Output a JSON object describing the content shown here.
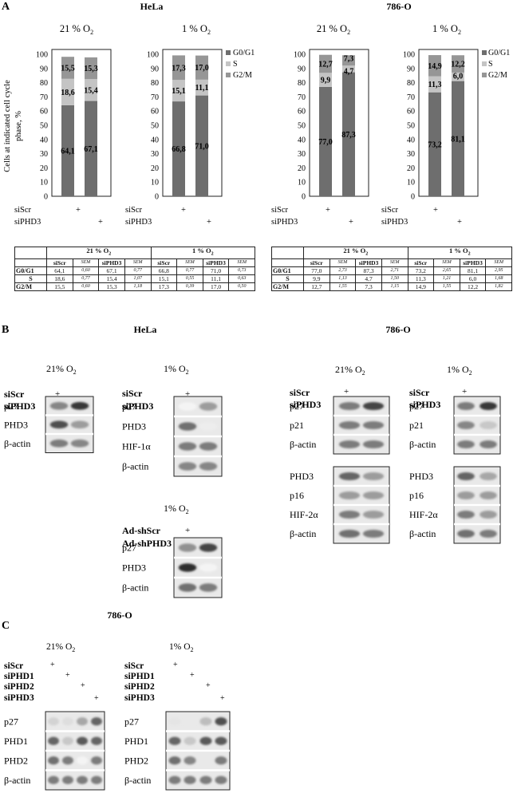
{
  "panels": {
    "A": "A",
    "B": "B",
    "C": "C"
  },
  "panel_a": {
    "cell_lines": [
      "HeLa",
      "786-O"
    ],
    "y_axis_label_line1": "Cells at indicated cell cycle",
    "y_axis_label_line2": "phase, %",
    "legend": [
      "G0/G1",
      "S",
      "G2/M"
    ],
    "row_labels": [
      "siScr",
      "siPHD3"
    ],
    "plus": "+"
  },
  "chart_data": [
    {
      "type": "bar",
      "stacked": true,
      "title": "HeLa 21 % O2",
      "categories": [
        "siScr",
        "siPHD3"
      ],
      "ylim": [
        0,
        100
      ],
      "yticks": [
        0,
        10,
        20,
        30,
        40,
        50,
        60,
        70,
        80,
        90,
        100
      ],
      "series": [
        {
          "name": "G0/G1",
          "values": [
            64.1,
            67.1
          ],
          "labels": [
            "64,1",
            "67,1"
          ],
          "color": "#6e6e6e"
        },
        {
          "name": "S",
          "values": [
            18.6,
            15.4
          ],
          "labels": [
            "18,6",
            "15,4"
          ],
          "color": "#c4c4c4"
        },
        {
          "name": "G2/M",
          "values": [
            15.5,
            15.3
          ],
          "labels": [
            "15,5",
            "15,3"
          ],
          "color": "#969696"
        }
      ]
    },
    {
      "type": "bar",
      "stacked": true,
      "title": "HeLa 1 % O2",
      "categories": [
        "siScr",
        "siPHD3"
      ],
      "ylim": [
        0,
        100
      ],
      "yticks": [
        0,
        10,
        20,
        30,
        40,
        50,
        60,
        70,
        80,
        90,
        100
      ],
      "series": [
        {
          "name": "G0/G1",
          "values": [
            66.8,
            71.0
          ],
          "labels": [
            "66,8",
            "71,0"
          ],
          "color": "#6e6e6e"
        },
        {
          "name": "S",
          "values": [
            15.1,
            11.1
          ],
          "labels": [
            "15,1",
            "11,1"
          ],
          "color": "#c4c4c4"
        },
        {
          "name": "G2/M",
          "values": [
            17.3,
            17.0
          ],
          "labels": [
            "17,3",
            "17,0"
          ],
          "color": "#969696"
        }
      ]
    },
    {
      "type": "bar",
      "stacked": true,
      "title": "786-O 21 % O2",
      "categories": [
        "siScr",
        "siPHD3"
      ],
      "ylim": [
        0,
        100
      ],
      "yticks": [
        0,
        10,
        20,
        30,
        40,
        50,
        60,
        70,
        80,
        90,
        100
      ],
      "series": [
        {
          "name": "G0/G1",
          "values": [
            77.0,
            87.3
          ],
          "labels": [
            "77,0",
            "87,3"
          ],
          "color": "#6e6e6e"
        },
        {
          "name": "S",
          "values": [
            9.9,
            4.7
          ],
          "labels": [
            "9,9",
            "4,7"
          ],
          "color": "#c4c4c4"
        },
        {
          "name": "G2/M",
          "values": [
            12.7,
            7.3
          ],
          "labels": [
            "12,7",
            "7,3"
          ],
          "color": "#969696"
        }
      ]
    },
    {
      "type": "bar",
      "stacked": true,
      "title": "786-O 1 % O2",
      "categories": [
        "siScr",
        "siPHD3"
      ],
      "ylim": [
        0,
        100
      ],
      "yticks": [
        0,
        10,
        20,
        30,
        40,
        50,
        60,
        70,
        80,
        90,
        100
      ],
      "series": [
        {
          "name": "G0/G1",
          "values": [
            73.2,
            81.1
          ],
          "labels": [
            "73,2",
            "81,1"
          ],
          "color": "#6e6e6e"
        },
        {
          "name": "S",
          "values": [
            11.3,
            6.0
          ],
          "labels": [
            "11,3",
            "6,0"
          ],
          "color": "#c4c4c4"
        },
        {
          "name": "G2/M",
          "values": [
            14.9,
            12.2
          ],
          "labels": [
            "14,9",
            "12,2"
          ],
          "color": "#969696"
        }
      ]
    }
  ],
  "tables": [
    {
      "conditions": [
        "21 % O",
        "1 % O"
      ],
      "cols": [
        "siScr",
        "SEM",
        "siPHD3",
        "SEM"
      ],
      "rows": [
        {
          "label": "G0/G1",
          "cells": [
            "64,1",
            "0,60",
            "67,1",
            "0,77",
            "66,8",
            "0,77",
            "71,0",
            "0,73"
          ]
        },
        {
          "label": "S",
          "cells": [
            "18,6",
            "0,77",
            "15,4",
            "1,07",
            "15,1",
            "0,55",
            "11,1",
            "0,63"
          ]
        },
        {
          "label": "G2/M",
          "cells": [
            "15,5",
            "0,60",
            "15,3",
            "1,18",
            "17,3",
            "0,39",
            "17,0",
            "0,50"
          ]
        }
      ]
    },
    {
      "conditions": [
        "21 % O",
        "1 % O"
      ],
      "cols": [
        "siScr",
        "SEM",
        "siPHD3",
        "SEM"
      ],
      "rows": [
        {
          "label": "G0/G1",
          "cells": [
            "77,0",
            "2,73",
            "87,3",
            "2,71",
            "73,2",
            "2,65",
            "81,1",
            "2,95"
          ]
        },
        {
          "label": "S",
          "cells": [
            "9,9",
            "1,13",
            "4,7",
            "1,50",
            "11,3",
            "1,21",
            "6,0",
            "1,68"
          ]
        },
        {
          "label": "G2/M",
          "cells": [
            "12,7",
            "1,55",
            "7,3",
            "1,15",
            "14,9",
            "1,55",
            "12,2",
            "1,82"
          ]
        }
      ]
    }
  ],
  "panel_b": {
    "hela_title": "HeLa",
    "c786_title": "786-O",
    "cond_21": "21% O",
    "cond_1": "1% O",
    "sub2": "2",
    "siScr": "siScr",
    "siPHD3": "siPHD3",
    "ad_shScr": "Ad-shScr",
    "ad_shPHD3": "Ad-shPHD3",
    "blots": {
      "hela21": [
        "p27",
        "PHD3",
        "β-actin"
      ],
      "hela1": [
        "p27",
        "PHD3",
        "HIF-1α",
        "β-actin"
      ],
      "hela1_ad": [
        "p27",
        "PHD3",
        "β-actin"
      ],
      "c786_top": [
        "p27",
        "p21",
        "β-actin"
      ],
      "c786_bottom": [
        "PHD3",
        "p16",
        "HIF-2α",
        "β-actin"
      ]
    }
  },
  "panel_c": {
    "title": "786-O",
    "cond_21": "21% O",
    "cond_1": "1% O",
    "sub2": "2",
    "treatments": [
      "siScr",
      "siPHD1",
      "siPHD2",
      "siPHD3"
    ],
    "blots": [
      "p27",
      "PHD1",
      "PHD2",
      "β-actin"
    ]
  }
}
